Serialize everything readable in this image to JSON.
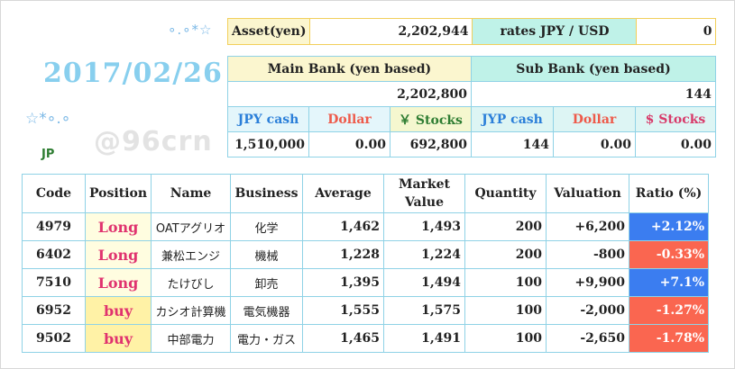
{
  "decor": {
    "top_stars": "∘.∘*☆",
    "mid_stars": "☆*∘.∘",
    "watermark": "@96crn"
  },
  "date": "2017/02/26",
  "region": "JP",
  "asset": {
    "label": "Asset(yen)",
    "value": "2,202,944",
    "rates_label": "rates  JPY / USD",
    "rates_value": "0"
  },
  "main_bank": {
    "title": "Main Bank (yen based)",
    "total": "2,202,800",
    "labels": [
      "JPY cash",
      "Dollar",
      "￥ Stocks"
    ],
    "values": [
      "1,510,000",
      "0.00",
      "692,800"
    ]
  },
  "sub_bank": {
    "title": "Sub Bank (yen based)",
    "total": "144",
    "labels": [
      "JYP cash",
      "Dollar",
      "$ Stocks"
    ],
    "values": [
      "144",
      "0.00",
      "0.00"
    ]
  },
  "positions": {
    "headers": [
      "Code",
      "Position",
      "Name",
      "Business",
      "Average",
      "Market\nValue",
      "Quantity",
      "Valuation",
      "Ratio (%)"
    ],
    "header_line1_market": "Market",
    "header_line2_market": "Value",
    "rows": [
      {
        "code": "4979",
        "position": "Long",
        "name": "OATアグリオ",
        "business": "化学",
        "average": "1,462",
        "market": "1,493",
        "quantity": "200",
        "valuation": "+6,200",
        "ratio": "+2.12%",
        "sign": "pos"
      },
      {
        "code": "6402",
        "position": "Long",
        "name": "兼松エンジ",
        "business": "機械",
        "average": "1,228",
        "market": "1,224",
        "quantity": "200",
        "valuation": "-800",
        "ratio": "-0.33%",
        "sign": "neg"
      },
      {
        "code": "7510",
        "position": "Long",
        "name": "たけびし",
        "business": "卸売",
        "average": "1,395",
        "market": "1,494",
        "quantity": "100",
        "valuation": "+9,900",
        "ratio": "+7.1%",
        "sign": "pos"
      },
      {
        "code": "6952",
        "position": "buy",
        "name": "カシオ計算機",
        "business": "電気機器",
        "average": "1,555",
        "market": "1,575",
        "quantity": "100",
        "valuation": "-2,000",
        "ratio": "-1.27%",
        "sign": "neg"
      },
      {
        "code": "9502",
        "position": "buy",
        "name": "中部電力",
        "business": "電力・ガス",
        "average": "1,465",
        "market": "1,491",
        "quantity": "100",
        "valuation": "-2,650",
        "ratio": "-1.78%",
        "sign": "neg"
      }
    ]
  },
  "colors": {
    "date": "#88cfee",
    "ratio_positive": "#3b7df0",
    "ratio_negative": "#fa6650",
    "position_text": "#e0336f",
    "border_blue": "#8fd2e6",
    "border_yellow": "#f2cf5a"
  }
}
